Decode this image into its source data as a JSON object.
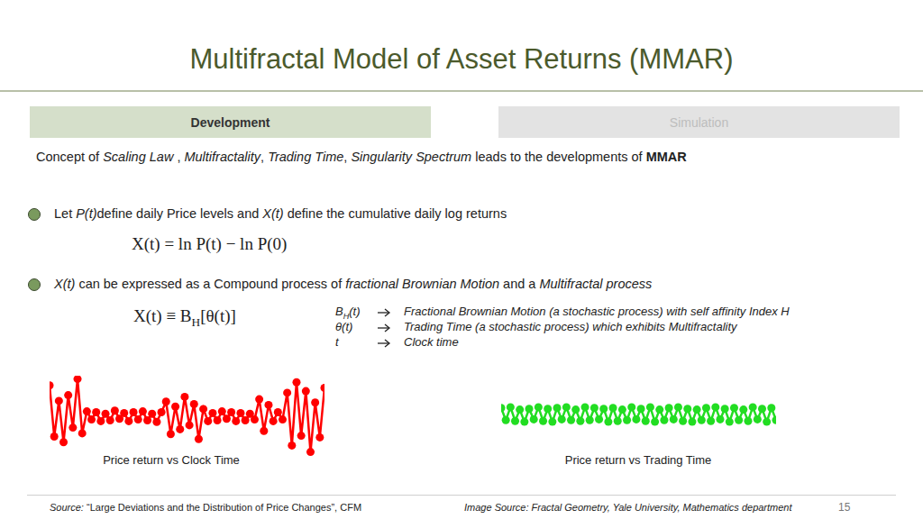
{
  "title": "Multifractal Model of Asset Returns (MMAR)",
  "tabs": [
    "Development",
    "Simulation"
  ],
  "intro": [
    {
      "text": "Concept of "
    },
    {
      "text": "Scaling Law",
      "style": "italic"
    },
    {
      "text": " , "
    },
    {
      "text": "Multifractality",
      "style": "italic"
    },
    {
      "text": ", "
    },
    {
      "text": "Trading Time",
      "style": "italic"
    },
    {
      "text": ", "
    },
    {
      "text": "Singularity Spectrum",
      "style": "italic"
    },
    {
      "text": " leads to the developments of "
    },
    {
      "text": "MMAR",
      "style": "bold"
    }
  ],
  "bullets": [
    {
      "segments": [
        {
          "text": "Let "
        },
        {
          "text": "P(t)",
          "style": "italic"
        },
        {
          "text": "define daily Price levels and "
        },
        {
          "text": "X(t)",
          "style": "italic"
        },
        {
          "text": " define the cumulative daily log returns"
        }
      ],
      "formula": [
        {
          "text": "X(t) = ln P(t) − ln P(0)"
        }
      ]
    },
    {
      "segments": [
        {
          "text": "X(t)",
          "style": "italic"
        },
        {
          "text": " can be expressed as a Compound process of "
        },
        {
          "text": "fractional Brownian Motion",
          "style": "italic"
        },
        {
          "text": " and a "
        },
        {
          "text": "Multifractal process",
          "style": "italic"
        }
      ],
      "formula": [
        {
          "text": "X(t) ≡ B"
        },
        {
          "text": "H",
          "style": "sub"
        },
        {
          "text": "[θ(t)]"
        }
      ]
    }
  ],
  "definitions": [
    {
      "symbol": [
        {
          "text": "B"
        },
        {
          "text": "H",
          "style": "sub"
        },
        {
          "text": "(t)"
        }
      ],
      "text": "Fractional Brownian Motion (a stochastic process) with self affinity Index H"
    },
    {
      "symbol": [
        {
          "text": "θ(t)"
        }
      ],
      "text": "Trading Time (a stochastic process) which exhibits Multifractality"
    },
    {
      "symbol": [
        {
          "text": "t"
        }
      ],
      "text": "Clock time"
    }
  ],
  "chart_data": [
    {
      "type": "scatter",
      "title": "Price return vs Clock Time",
      "color": "#ff0000",
      "x": [
        0,
        1,
        2,
        3,
        4,
        5,
        6,
        7,
        8,
        9,
        10,
        11,
        12,
        13,
        14,
        15,
        16,
        17,
        18,
        19,
        20,
        21,
        22,
        23,
        24,
        25,
        26,
        27,
        28,
        29,
        30,
        31,
        32,
        33,
        34,
        35,
        36,
        37,
        38,
        39,
        40,
        41,
        42,
        43,
        44,
        45,
        46,
        47,
        48,
        49,
        50,
        51,
        52,
        53,
        54,
        55,
        56,
        57,
        58,
        59
      ],
      "values": [
        3.8,
        -2.5,
        1.9,
        -3.2,
        2.6,
        -1.4,
        4.6,
        -2.1,
        0.6,
        -0.4,
        0.5,
        -0.6,
        0.3,
        -0.5,
        0.7,
        -0.3,
        0.4,
        -0.6,
        0.5,
        -0.4,
        0.6,
        -0.5,
        0.3,
        -0.7,
        0.5,
        1.8,
        -2.2,
        1.2,
        -1.6,
        2.4,
        -1.1,
        1.5,
        -2.8,
        0.9,
        -0.6,
        0.4,
        -0.5,
        0.6,
        -0.3,
        0.5,
        -0.6,
        0.4,
        -0.5,
        0.3,
        -0.4,
        2.1,
        -1.8,
        1.4,
        -0.6,
        0.5,
        -0.4,
        2.9,
        -3.6,
        4.2,
        -2.4,
        3.1,
        -4.4,
        1.7,
        -2.6,
        3.5
      ],
      "xlim": [
        0,
        59
      ],
      "ylim": [
        -5,
        5
      ],
      "tick_labels": false
    },
    {
      "type": "scatter",
      "title": "Price return vs Trading Time",
      "color": "#22dd22",
      "x": [
        0,
        1,
        2,
        3,
        4,
        5,
        6,
        7,
        8,
        9,
        10,
        11,
        12,
        13,
        14,
        15,
        16,
        17,
        18,
        19,
        20,
        21,
        22,
        23,
        24,
        25,
        26,
        27,
        28,
        29,
        30,
        31,
        32,
        33,
        34,
        35,
        36,
        37,
        38,
        39,
        40,
        41,
        42,
        43,
        44,
        45,
        46,
        47,
        48,
        49,
        50,
        51,
        52,
        53,
        54,
        55,
        56,
        57,
        58,
        59
      ],
      "values": [
        0.8,
        -0.7,
        0.9,
        -0.8,
        0.6,
        -0.9,
        0.7,
        -0.6,
        0.9,
        -0.8,
        0.7,
        -0.9,
        0.8,
        -0.6,
        0.9,
        -0.7,
        0.6,
        -0.8,
        0.9,
        -0.7,
        0.8,
        -0.6,
        0.7,
        -0.9,
        0.8,
        -0.8,
        0.6,
        -0.7,
        0.9,
        -0.6,
        0.7,
        -0.8,
        0.9,
        -0.9,
        0.6,
        -0.7,
        0.8,
        -0.6,
        0.9,
        -0.8,
        0.7,
        -0.9,
        0.6,
        -0.7,
        0.8,
        -0.8,
        0.9,
        -0.6,
        0.7,
        -0.9,
        0.8,
        -0.7,
        0.6,
        -0.8,
        0.9,
        -0.6,
        0.7,
        -0.9,
        0.8,
        -0.7
      ],
      "xlim": [
        0,
        59
      ],
      "ylim": [
        -5,
        5
      ],
      "tick_labels": false
    }
  ],
  "footer": {
    "source_label": "Source:",
    "source": " “Large Deviations and the Distribution of Price Changes”, CFM",
    "image_source": "Image Source: Fractal Geometry, Yale University, Mathematics department",
    "page": 15
  }
}
